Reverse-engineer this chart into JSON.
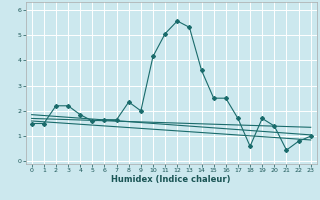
{
  "xlabel": "Humidex (Indice chaleur)",
  "bg_color": "#cce8ee",
  "grid_color": "#ffffff",
  "line_color": "#1a6b6b",
  "xlim": [
    -0.5,
    23.5
  ],
  "ylim": [
    -0.1,
    6.3
  ],
  "yticks": [
    0,
    1,
    2,
    3,
    4,
    5,
    6
  ],
  "xticks": [
    0,
    1,
    2,
    3,
    4,
    5,
    6,
    7,
    8,
    9,
    10,
    11,
    12,
    13,
    14,
    15,
    16,
    17,
    18,
    19,
    20,
    21,
    22,
    23
  ],
  "series1_x": [
    0,
    1,
    2,
    3,
    4,
    5,
    6,
    7,
    8,
    9,
    10,
    11,
    12,
    13,
    14,
    15,
    16,
    17,
    18,
    19,
    20,
    21,
    22,
    23
  ],
  "series1_y": [
    1.5,
    1.5,
    2.2,
    2.2,
    1.85,
    1.6,
    1.65,
    1.65,
    2.35,
    2.0,
    4.15,
    5.05,
    5.55,
    5.3,
    3.6,
    2.5,
    2.5,
    1.7,
    0.6,
    1.7,
    1.4,
    0.45,
    0.8,
    1.0
  ],
  "series2_x": [
    0,
    23
  ],
  "series2_y": [
    1.85,
    1.05
  ],
  "series3_x": [
    0,
    23
  ],
  "series3_y": [
    1.7,
    1.35
  ],
  "series4_x": [
    0,
    23
  ],
  "series4_y": [
    1.6,
    0.85
  ]
}
